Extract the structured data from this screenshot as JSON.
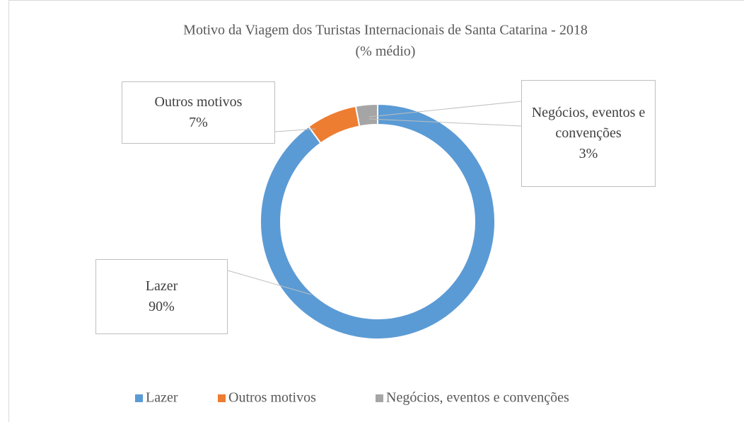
{
  "chart_data": {
    "type": "donut",
    "title": "Motivo da Viagem dos Turistas Internacionais de Santa Catarina - 2018",
    "subtitle": "(% médio)",
    "categories": [
      "Lazer",
      "Outros motivos",
      "Negócios, eventos e convenções"
    ],
    "values": [
      90,
      7,
      3
    ],
    "value_labels": [
      "90%",
      "7%",
      "3%"
    ],
    "colors": [
      "#5b9bd5",
      "#ed7d31",
      "#a5a5a5"
    ],
    "legend": "bottom"
  }
}
